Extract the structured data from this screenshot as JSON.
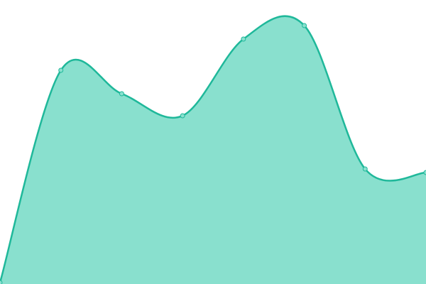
{
  "chart_data": {
    "type": "area",
    "categories": [
      null,
      null,
      null,
      null,
      null,
      null,
      null,
      null
    ],
    "values": [
      2,
      301,
      268,
      237,
      345,
      364,
      162,
      157
    ],
    "color": "#1fb89a",
    "area_color": "#89e0ce",
    "smooth": true,
    "markers": true,
    "ylim": [
      0,
      400
    ]
  }
}
